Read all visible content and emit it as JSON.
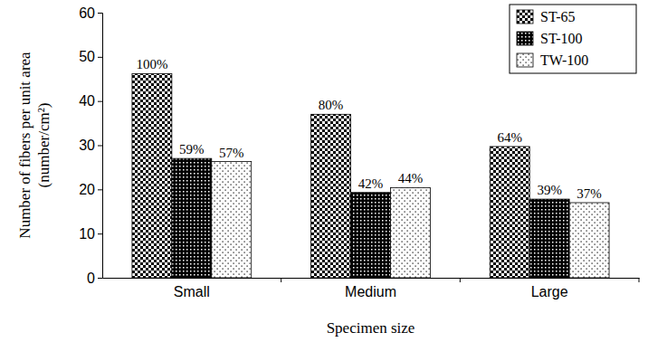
{
  "chart_data": {
    "type": "bar",
    "x_label": "Specimen size",
    "y_label": [
      "Number of fibers per unit area",
      "(number/cm²)"
    ],
    "categories": [
      "Small",
      "Medium",
      "Large"
    ],
    "series": [
      {
        "name": "ST-65",
        "color": "#000000",
        "values": [
          46.2,
          37.0,
          29.7
        ],
        "percent_labels": [
          "100%",
          "80%",
          "64%"
        ]
      },
      {
        "name": "ST-100",
        "color": "#000000",
        "values": [
          27.0,
          19.3,
          17.8
        ],
        "percent_labels": [
          "59%",
          "42%",
          "39%"
        ]
      },
      {
        "name": "TW-100",
        "color": "#000000",
        "values": [
          26.3,
          20.4,
          17.0
        ],
        "percent_labels": [
          "57%",
          "44%",
          "37%"
        ]
      }
    ],
    "ylim": [
      0,
      60
    ],
    "yticks": [
      0,
      10,
      20,
      30,
      40,
      50,
      60
    ],
    "grid": false,
    "legend": "top-right"
  }
}
